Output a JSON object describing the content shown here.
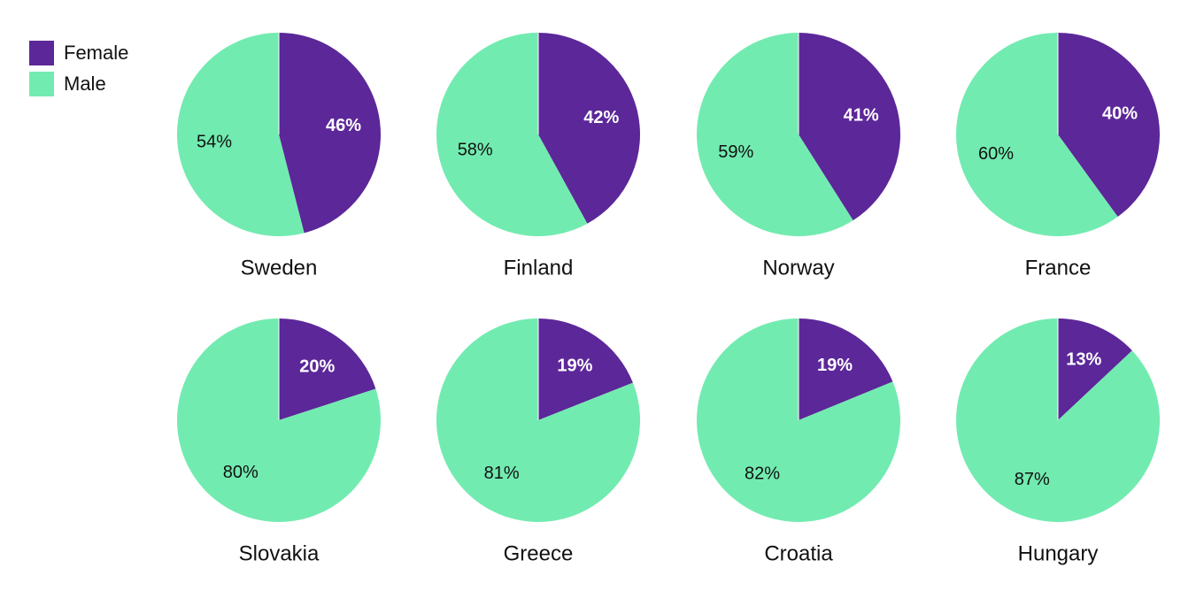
{
  "chart_data": {
    "type": "pie",
    "categories": [
      "Female",
      "Male"
    ],
    "colors": [
      "#5c2799",
      "#72ebb0"
    ],
    "pies": [
      {
        "title": "Sweden",
        "values": [
          46,
          54
        ],
        "value_labels": [
          "46%",
          "54%"
        ]
      },
      {
        "title": "Finland",
        "values": [
          42,
          58
        ],
        "value_labels": [
          "42%",
          "58%"
        ]
      },
      {
        "title": "Norway",
        "values": [
          41,
          59
        ],
        "value_labels": [
          "41%",
          "59%"
        ]
      },
      {
        "title": "France",
        "values": [
          40,
          60
        ],
        "value_labels": [
          "40%",
          "60%"
        ]
      },
      {
        "title": "Slovakia",
        "values": [
          20,
          80
        ],
        "value_labels": [
          "20%",
          "80%"
        ]
      },
      {
        "title": "Greece",
        "values": [
          19,
          81
        ],
        "value_labels": [
          "19%",
          "81%"
        ]
      },
      {
        "title": "Croatia",
        "values": [
          19,
          82
        ],
        "value_labels": [
          "19%",
          "82%"
        ]
      },
      {
        "title": "Hungary",
        "values": [
          13,
          87
        ],
        "value_labels": [
          "13%",
          "87%"
        ]
      }
    ]
  }
}
